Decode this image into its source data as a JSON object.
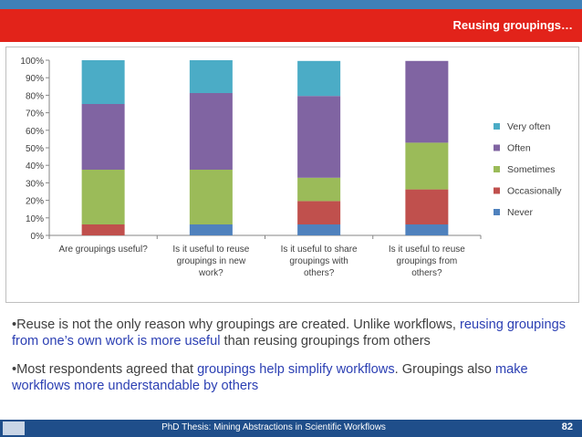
{
  "header": {
    "title": "Reusing groupings…"
  },
  "chart_data": {
    "type": "bar",
    "stacked": true,
    "percent": true,
    "categories": [
      [
        "Are groupings useful?"
      ],
      [
        "Is it useful to reuse",
        "groupings in new",
        "work?"
      ],
      [
        "Is it useful to share",
        "groupings with",
        "others?"
      ],
      [
        "Is it useful to reuse",
        "groupings from",
        "others?"
      ]
    ],
    "series": [
      {
        "name": "Never",
        "color": "#4f81bd",
        "values": [
          0,
          6.25,
          6.25,
          6.25
        ]
      },
      {
        "name": "Occasionally",
        "color": "#c0504d",
        "values": [
          6.25,
          0,
          13.33,
          20
        ]
      },
      {
        "name": "Sometimes",
        "color": "#9bbb59",
        "values": [
          31.25,
          31.25,
          13.33,
          26.67
        ]
      },
      {
        "name": "Often",
        "color": "#8064a2",
        "values": [
          37.5,
          43.75,
          46.67,
          46.67
        ]
      },
      {
        "name": "Very often",
        "color": "#4bacc6",
        "values": [
          25,
          18.75,
          20,
          0
        ]
      }
    ],
    "ylim": [
      0,
      100
    ],
    "yticks": [
      "0%",
      "10%",
      "20%",
      "30%",
      "40%",
      "50%",
      "60%",
      "70%",
      "80%",
      "90%",
      "100%"
    ],
    "grid": false,
    "legend": "right"
  },
  "bullets": [
    {
      "segments": [
        {
          "text": "•Reuse is not the only reason why groupings are created.  Unlike workflows, ",
          "hl": false
        },
        {
          "text": "reusing groupings from one’s own work is more useful",
          "hl": true
        },
        {
          "text": " than reusing groupings from others",
          "hl": false
        }
      ]
    },
    {
      "segments": [
        {
          "text": "•Most respondents agreed that ",
          "hl": false
        },
        {
          "text": "groupings help simplify workflows",
          "hl": true
        },
        {
          "text": ". Groupings also ",
          "hl": false
        },
        {
          "text": "make workflows more understandable by others",
          "hl": true
        }
      ]
    }
  ],
  "footer": {
    "text": "PhD Thesis: Mining Abstractions in Scientific Workflows",
    "page": "82"
  }
}
